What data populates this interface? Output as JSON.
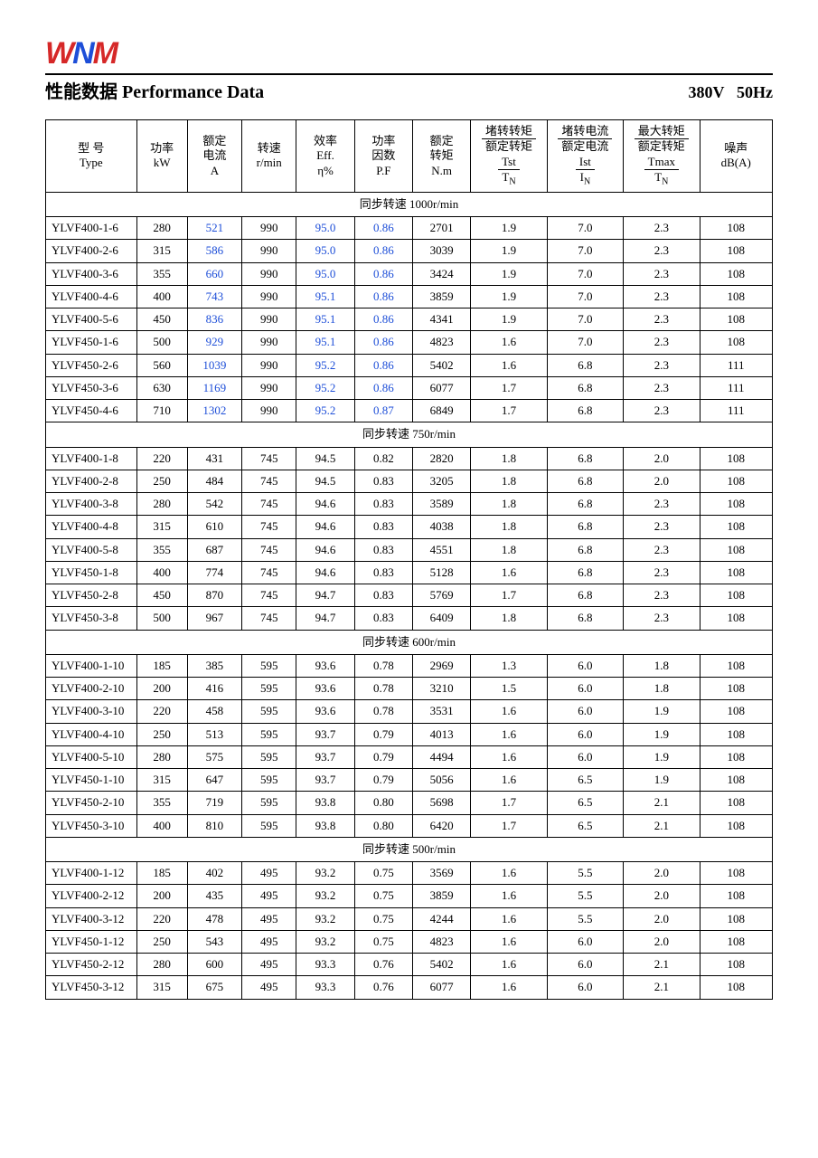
{
  "brand": {
    "t": "WNM"
  },
  "header": {
    "title_cn": "性能数据",
    "title_en": "Performance Data",
    "voltage": "380V",
    "freq": "50Hz"
  },
  "columns": {
    "type_cn": "型 号",
    "type_en": "Type",
    "kw_cn": "功率",
    "kw_en": "kW",
    "a_cn": "额定\n电流",
    "a_en": "A",
    "rpm_cn": "转速",
    "rpm_en": "r/min",
    "eff_cn": "效率",
    "eff_en": "Eff.",
    "eff_unit": "η%",
    "pf_cn": "功率\n因数",
    "pf_en": "P.F",
    "nm_cn": "额定\n转矩",
    "nm_en": "N.m",
    "tst_top": "堵转转矩",
    "tst_bot": "额定转矩",
    "tst_sym_t": "Tst",
    "tst_sym_b": "T",
    "tst_sub": "N",
    "ist_top": "堵转电流",
    "ist_bot": "额定电流",
    "ist_sym_t": "Ist",
    "ist_sym_b": "I",
    "ist_sub": "N",
    "tmax_top": "最大转矩",
    "tmax_bot": "额定转矩",
    "tmax_sym_t": "Tmax",
    "tmax_sym_b": "T",
    "tmax_sub": "N",
    "db_cn": "噪声",
    "db_en": "dB(A)"
  },
  "sections": [
    {
      "title": "同步转速   1000r/min",
      "blueCols": [
        2,
        4,
        5
      ],
      "rows": [
        [
          "YLVF400-1-6",
          "280",
          "521",
          "990",
          "95.0",
          "0.86",
          "2701",
          "1.9",
          "7.0",
          "2.3",
          "108"
        ],
        [
          "YLVF400-2-6",
          "315",
          "586",
          "990",
          "95.0",
          "0.86",
          "3039",
          "1.9",
          "7.0",
          "2.3",
          "108"
        ],
        [
          "YLVF400-3-6",
          "355",
          "660",
          "990",
          "95.0",
          "0.86",
          "3424",
          "1.9",
          "7.0",
          "2.3",
          "108"
        ],
        [
          "YLVF400-4-6",
          "400",
          "743",
          "990",
          "95.1",
          "0.86",
          "3859",
          "1.9",
          "7.0",
          "2.3",
          "108"
        ],
        [
          "YLVF400-5-6",
          "450",
          "836",
          "990",
          "95.1",
          "0.86",
          "4341",
          "1.9",
          "7.0",
          "2.3",
          "108"
        ],
        [
          "YLVF450-1-6",
          "500",
          "929",
          "990",
          "95.1",
          "0.86",
          "4823",
          "1.6",
          "7.0",
          "2.3",
          "108"
        ],
        [
          "YLVF450-2-6",
          "560",
          "1039",
          "990",
          "95.2",
          "0.86",
          "5402",
          "1.6",
          "6.8",
          "2.3",
          "111"
        ],
        [
          "YLVF450-3-6",
          "630",
          "1169",
          "990",
          "95.2",
          "0.86",
          "6077",
          "1.7",
          "6.8",
          "2.3",
          "111"
        ],
        [
          "YLVF450-4-6",
          "710",
          "1302",
          "990",
          "95.2",
          "0.87",
          "6849",
          "1.7",
          "6.8",
          "2.3",
          "111"
        ]
      ]
    },
    {
      "title": "同步转速   750r/min",
      "blueCols": [],
      "rows": [
        [
          "YLVF400-1-8",
          "220",
          "431",
          "745",
          "94.5",
          "0.82",
          "2820",
          "1.8",
          "6.8",
          "2.0",
          "108"
        ],
        [
          "YLVF400-2-8",
          "250",
          "484",
          "745",
          "94.5",
          "0.83",
          "3205",
          "1.8",
          "6.8",
          "2.0",
          "108"
        ],
        [
          "YLVF400-3-8",
          "280",
          "542",
          "745",
          "94.6",
          "0.83",
          "3589",
          "1.8",
          "6.8",
          "2.3",
          "108"
        ],
        [
          "YLVF400-4-8",
          "315",
          "610",
          "745",
          "94.6",
          "0.83",
          "4038",
          "1.8",
          "6.8",
          "2.3",
          "108"
        ],
        [
          "YLVF400-5-8",
          "355",
          "687",
          "745",
          "94.6",
          "0.83",
          "4551",
          "1.8",
          "6.8",
          "2.3",
          "108"
        ],
        [
          "YLVF450-1-8",
          "400",
          "774",
          "745",
          "94.6",
          "0.83",
          "5128",
          "1.6",
          "6.8",
          "2.3",
          "108"
        ],
        [
          "YLVF450-2-8",
          "450",
          "870",
          "745",
          "94.7",
          "0.83",
          "5769",
          "1.7",
          "6.8",
          "2.3",
          "108"
        ],
        [
          "YLVF450-3-8",
          "500",
          "967",
          "745",
          "94.7",
          "0.83",
          "6409",
          "1.8",
          "6.8",
          "2.3",
          "108"
        ]
      ]
    },
    {
      "title": "同步转速   600r/min",
      "blueCols": [],
      "rows": [
        [
          "YLVF400-1-10",
          "185",
          "385",
          "595",
          "93.6",
          "0.78",
          "2969",
          "1.3",
          "6.0",
          "1.8",
          "108"
        ],
        [
          "YLVF400-2-10",
          "200",
          "416",
          "595",
          "93.6",
          "0.78",
          "3210",
          "1.5",
          "6.0",
          "1.8",
          "108"
        ],
        [
          "YLVF400-3-10",
          "220",
          "458",
          "595",
          "93.6",
          "0.78",
          "3531",
          "1.6",
          "6.0",
          "1.9",
          "108"
        ],
        [
          "YLVF400-4-10",
          "250",
          "513",
          "595",
          "93.7",
          "0.79",
          "4013",
          "1.6",
          "6.0",
          "1.9",
          "108"
        ],
        [
          "YLVF400-5-10",
          "280",
          "575",
          "595",
          "93.7",
          "0.79",
          "4494",
          "1.6",
          "6.0",
          "1.9",
          "108"
        ],
        [
          "YLVF450-1-10",
          "315",
          "647",
          "595",
          "93.7",
          "0.79",
          "5056",
          "1.6",
          "6.5",
          "1.9",
          "108"
        ],
        [
          "YLVF450-2-10",
          "355",
          "719",
          "595",
          "93.8",
          "0.80",
          "5698",
          "1.7",
          "6.5",
          "2.1",
          "108"
        ],
        [
          "YLVF450-3-10",
          "400",
          "810",
          "595",
          "93.8",
          "0.80",
          "6420",
          "1.7",
          "6.5",
          "2.1",
          "108"
        ]
      ]
    },
    {
      "title": "同步转速   500r/min",
      "blueCols": [],
      "rows": [
        [
          "YLVF400-1-12",
          "185",
          "402",
          "495",
          "93.2",
          "0.75",
          "3569",
          "1.6",
          "5.5",
          "2.0",
          "108"
        ],
        [
          "YLVF400-2-12",
          "200",
          "435",
          "495",
          "93.2",
          "0.75",
          "3859",
          "1.6",
          "5.5",
          "2.0",
          "108"
        ],
        [
          "YLVF400-3-12",
          "220",
          "478",
          "495",
          "93.2",
          "0.75",
          "4244",
          "1.6",
          "5.5",
          "2.0",
          "108"
        ],
        [
          "YLVF450-1-12",
          "250",
          "543",
          "495",
          "93.2",
          "0.75",
          "4823",
          "1.6",
          "6.0",
          "2.0",
          "108"
        ],
        [
          "YLVF450-2-12",
          "280",
          "600",
          "495",
          "93.3",
          "0.76",
          "5402",
          "1.6",
          "6.0",
          "2.1",
          "108"
        ],
        [
          "YLVF450-3-12",
          "315",
          "675",
          "495",
          "93.3",
          "0.76",
          "6077",
          "1.6",
          "6.0",
          "2.1",
          "108"
        ]
      ]
    }
  ]
}
